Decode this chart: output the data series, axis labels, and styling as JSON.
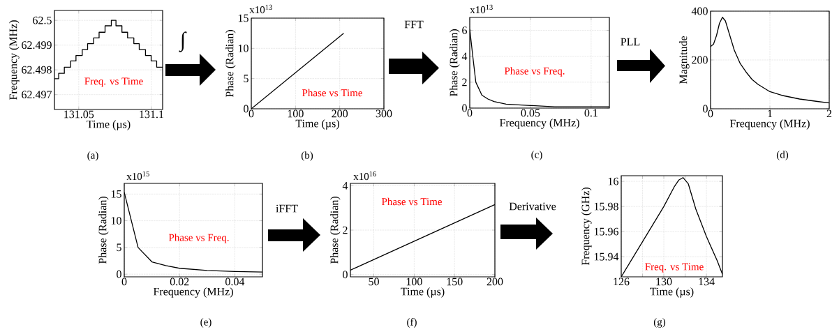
{
  "chart_data": [
    {
      "type": "step",
      "xlabel": "Time (µs)",
      "ylabel": "Frequency (MHz)",
      "grid": true,
      "annotations": [
        "(a)",
        "Freq. vs Time",
        "∫"
      ],
      "xlim": [
        131.0333,
        131.1077
      ],
      "ylim": [
        62.4964,
        62.5004
      ],
      "xticks": [
        131.05,
        131.1
      ],
      "yticks": [
        62.497,
        62.498,
        62.499,
        62.5
      ],
      "series": [
        {
          "color": "#000000",
          "x": [
            131.0333,
            131.0362,
            131.0401,
            131.0444,
            131.0481,
            131.0524,
            131.0561,
            131.0602,
            131.064,
            131.0681,
            131.0724,
            131.0756,
            131.0797,
            131.0836,
            131.0879,
            131.0916,
            131.0959,
            131.0998,
            131.1036,
            131.1077
          ],
          "values": [
            62.49764,
            62.49786,
            62.49811,
            62.49836,
            62.49858,
            62.49882,
            62.49906,
            62.49929,
            62.49952,
            62.49978,
            62.5,
            62.49978,
            62.49952,
            62.49929,
            62.49906,
            62.49882,
            62.49858,
            62.49836,
            62.49811,
            62.49811
          ]
        }
      ]
    },
    {
      "type": "line",
      "xlabel": "Time (µs)",
      "ylabel": "Phase (Radian)",
      "grid": true,
      "annotations": [
        "(b)",
        "Phase vs Time",
        "x10$^{13}$",
        "FFT"
      ],
      "xlim": [
        0,
        300
      ],
      "ylim": [
        0,
        15
      ],
      "xticks": [
        0,
        100,
        200,
        300
      ],
      "yticks": [
        0,
        5,
        10,
        15
      ],
      "series": [
        {
          "color": "#000000",
          "x": [
            0,
            209
          ],
          "values": [
            0,
            12.5
          ]
        }
      ]
    },
    {
      "type": "line",
      "xlabel": "Frequency (MHz)",
      "ylabel": "Phase (Radian)",
      "grid": true,
      "annotations": [
        "(c)",
        "Phase vs Freq.",
        "x10$^{13}$",
        "PLL"
      ],
      "xlim": [
        0,
        0.115
      ],
      "ylim": [
        0,
        7
      ],
      "xticks": [
        0,
        0.05,
        0.1
      ],
      "yticks": [
        0,
        2,
        4,
        6
      ],
      "series": [
        {
          "color": "#000000",
          "x": [
            0,
            0.0025,
            0.005,
            0.01,
            0.015,
            0.02,
            0.03,
            0.05,
            0.07,
            0.09,
            0.115
          ],
          "values": [
            6.1,
            4,
            2,
            1,
            0.7,
            0.5,
            0.3,
            0.2,
            0.1,
            0.1,
            0.1
          ]
        }
      ]
    },
    {
      "type": "line",
      "xlabel": "Frequency (MHz)",
      "ylabel": "Magnitude",
      "grid": true,
      "annotations": [
        "(d)"
      ],
      "xlim": [
        0,
        2
      ],
      "ylim": [
        0,
        400
      ],
      "xticks": [
        0,
        1,
        2
      ],
      "yticks": [
        0,
        200,
        400
      ],
      "series": [
        {
          "color": "#000000",
          "x": [
            0,
            0.05,
            0.1,
            0.15,
            0.2,
            0.25,
            0.3,
            0.4,
            0.5,
            0.6,
            0.7,
            0.8,
            1,
            1.2,
            1.5,
            1.8,
            2
          ],
          "values": [
            255,
            265,
            300,
            350,
            375,
            360,
            320,
            240,
            185,
            150,
            120,
            100,
            70,
            55,
            40,
            30,
            24
          ]
        }
      ]
    },
    {
      "type": "line",
      "xlabel": "Frequency (MHz)",
      "ylabel": "Phase (Radian)",
      "grid": true,
      "annotations": [
        "(e)",
        "Phase vs Freq.",
        "x10$^{15}$",
        "iFFT"
      ],
      "xlim": [
        0,
        0.05
      ],
      "ylim": [
        -0.5,
        17
      ],
      "xticks": [
        0,
        0.02,
        0.04
      ],
      "yticks": [
        0,
        5,
        10,
        15
      ],
      "series": [
        {
          "color": "#000000",
          "x": [
            0,
            0.005,
            0.01,
            0.015,
            0.02,
            0.03,
            0.04,
            0.05
          ],
          "values": [
            15.3,
            5,
            2.3,
            1.6,
            1.1,
            0.7,
            0.5,
            0.4
          ]
        }
      ]
    },
    {
      "type": "line",
      "xlabel": "Time (µs)",
      "ylabel": "Phase (Radian)",
      "grid": true,
      "annotations": [
        "(f)",
        "Phase vs Time",
        "x10$^{16}$",
        "Derivative"
      ],
      "xlim": [
        21,
        200
      ],
      "ylim": [
        -0.1,
        4.1
      ],
      "xticks": [
        50,
        100,
        150,
        200
      ],
      "yticks": [
        0,
        2,
        4
      ],
      "series": [
        {
          "color": "#000000",
          "x": [
            21,
            200
          ],
          "values": [
            0.2,
            3.15
          ]
        }
      ]
    },
    {
      "type": "line",
      "xlabel": "Time (µs)",
      "ylabel": "Frequency (GHz)",
      "grid": true,
      "annotations": [
        "(g)",
        "Freq. vs Time"
      ],
      "xlim": [
        126,
        135.5
      ],
      "ylim": [
        15.924,
        16.0045
      ],
      "xticks": [
        126,
        {
          "value": 128,
          "label": null
        },
        130,
        {
          "value": 132,
          "label": null
        },
        134
      ],
      "yticks": [
        15.94,
        15.96,
        15.98,
        16
      ],
      "series": [
        {
          "color": "#000000",
          "x": [
            126,
            128,
            130,
            131,
            131.4,
            131.8,
            132.3,
            133,
            134,
            135,
            135.5
          ],
          "values": [
            15.924,
            15.952,
            15.98,
            15.996,
            16.001,
            16.003,
            15.998,
            15.978,
            15.956,
            15.937,
            15.926
          ]
        }
      ]
    }
  ]
}
